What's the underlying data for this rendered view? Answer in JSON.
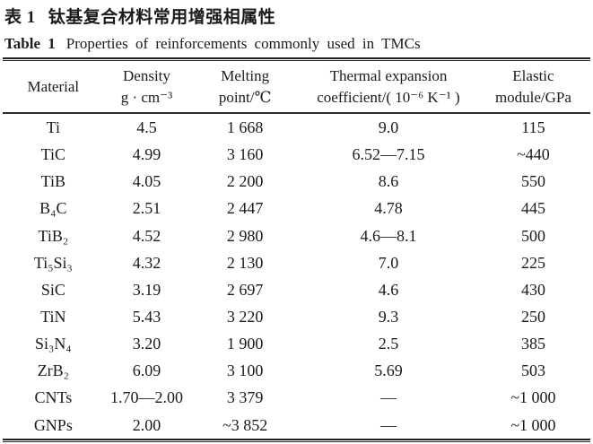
{
  "captions": {
    "zh_label": "表 1",
    "zh_text": "钛基复合材料常用增强相属性",
    "en_label": "Table 1",
    "en_text": "Properties of reinforcements commonly used in TMCs"
  },
  "table": {
    "columns": [
      {
        "line1": "Material",
        "line2": ""
      },
      {
        "line1": "Density",
        "line2": "g · cm⁻³"
      },
      {
        "line1": "Melting",
        "line2": "point/℃"
      },
      {
        "line1": "Thermal expansion",
        "line2": "coefficient/( 10⁻⁶ K⁻¹ )"
      },
      {
        "line1": "Elastic",
        "line2": "module/GPa"
      }
    ],
    "rows": [
      [
        "Ti",
        "4.5",
        "1 668",
        "9.0",
        "115"
      ],
      [
        "TiC",
        "4.99",
        "3 160",
        "6.52—7.15",
        "~440"
      ],
      [
        "TiB",
        "4.05",
        "2 200",
        "8.6",
        "550"
      ],
      [
        "B₄C",
        "2.51",
        "2 447",
        "4.78",
        "445"
      ],
      [
        "TiB₂",
        "4.52",
        "2 980",
        "4.6—8.1",
        "500"
      ],
      [
        "Ti₅Si₃",
        "4.32",
        "2 130",
        "7.0",
        "225"
      ],
      [
        "SiC",
        "3.19",
        "2 697",
        "4.6",
        "430"
      ],
      [
        "TiN",
        "5.43",
        "3 220",
        "9.3",
        "250"
      ],
      [
        "Si₃N₄",
        "3.20",
        "1 900",
        "2.5",
        "385"
      ],
      [
        "ZrB₂",
        "6.09",
        "3 100",
        "5.69",
        "503"
      ],
      [
        "CNTs",
        "1.70—2.00",
        "3 379",
        "—",
        "~1 000"
      ],
      [
        "GNPs",
        "2.00",
        "~3 852",
        "—",
        "~1 000"
      ]
    ]
  }
}
